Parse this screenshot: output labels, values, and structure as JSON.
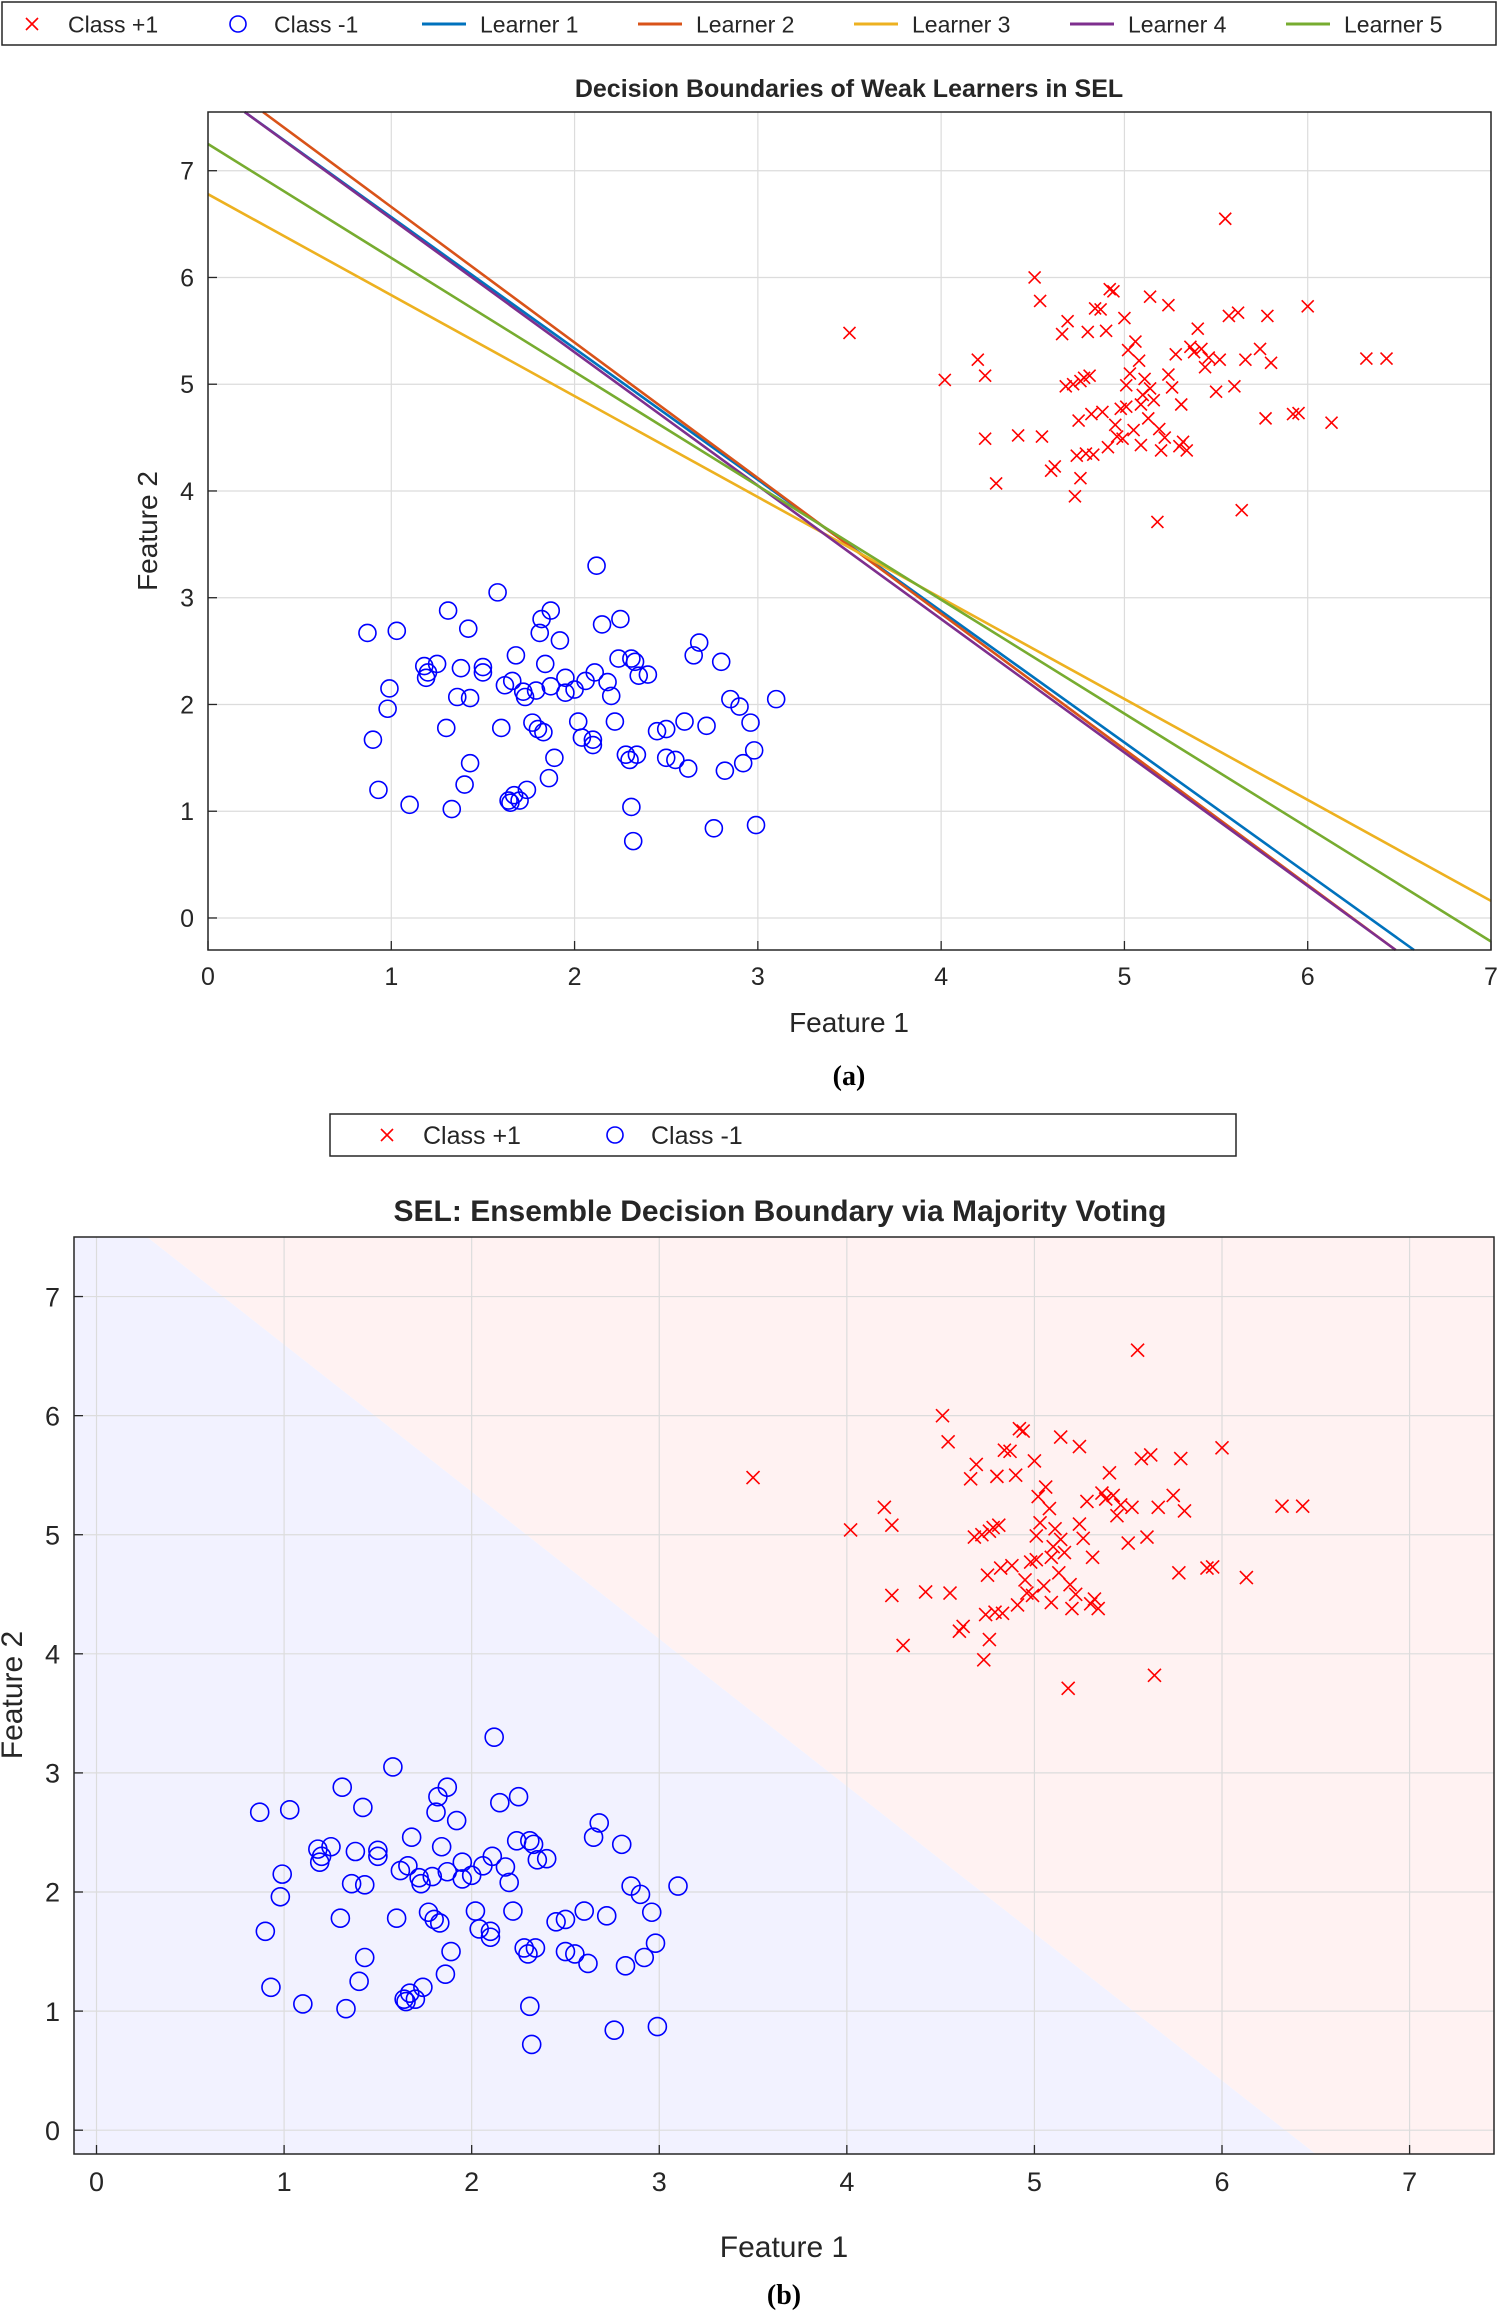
{
  "captions": [
    "(a)",
    "(b)"
  ],
  "chart_data": [
    {
      "type": "line",
      "title": "Decision Boundaries of Weak Learners in SEL",
      "xlabel": "Feature 1",
      "ylabel": "Feature 2",
      "xlim": [
        0,
        7
      ],
      "ylim": [
        -0.3,
        7.55
      ],
      "xticks": [
        0,
        1,
        2,
        3,
        4,
        5,
        6,
        7
      ],
      "yticks": [
        0,
        1,
        2,
        3,
        4,
        5,
        6,
        7
      ],
      "grid": true,
      "legend": {
        "placement": "top",
        "entries": [
          {
            "label": "Class +1",
            "marker": "x",
            "color": "#ff0000"
          },
          {
            "label": "Class -1",
            "marker": "o",
            "color": "#0000ff"
          },
          {
            "label": "Learner 1",
            "marker": "line",
            "color": "#0072bd"
          },
          {
            "label": "Learner 2",
            "marker": "line",
            "color": "#d95319"
          },
          {
            "label": "Learner 3",
            "marker": "line",
            "color": "#edb120"
          },
          {
            "label": "Learner 4",
            "marker": "line",
            "color": "#7e2f8e"
          },
          {
            "label": "Learner 5",
            "marker": "line",
            "color": "#77ac30"
          }
        ]
      },
      "learners": [
        {
          "name": "Learner 1",
          "color": "#0072bd",
          "x": [
            0.2,
            6.58
          ],
          "y": [
            7.55,
            -0.3
          ]
        },
        {
          "name": "Learner 2",
          "color": "#d95319",
          "x": [
            0.3,
            6.48
          ],
          "y": [
            7.55,
            -0.3
          ]
        },
        {
          "name": "Learner 3",
          "color": "#edb120",
          "x": [
            0.0,
            7.0
          ],
          "y": [
            6.78,
            0.16
          ]
        },
        {
          "name": "Learner 4",
          "color": "#7e2f8e",
          "x": [
            0.2,
            6.48
          ],
          "y": [
            7.55,
            -0.3
          ]
        },
        {
          "name": "Learner 5",
          "color": "#77ac30",
          "x": [
            0.0,
            7.0
          ],
          "y": [
            7.25,
            -0.22
          ]
        }
      ]
    },
    {
      "type": "scatter",
      "title": "SEL: Ensemble Decision Boundary via Majority Voting",
      "xlabel": "Feature 1",
      "ylabel": "Feature 2",
      "xlim": [
        -0.12,
        7.45
      ],
      "ylim": [
        -0.2,
        7.5
      ],
      "xticks": [
        0,
        1,
        2,
        3,
        4,
        5,
        6,
        7
      ],
      "yticks": [
        0,
        1,
        2,
        3,
        4,
        5,
        6,
        7
      ],
      "grid": true,
      "legend": {
        "placement": "top",
        "entries": [
          {
            "label": "Class +1",
            "marker": "x",
            "color": "#ff0000"
          },
          {
            "label": "Class -1",
            "marker": "o",
            "color": "#0000ff"
          }
        ]
      },
      "regions": {
        "class_minus1_color": "#f2f2ff",
        "class_plus1_color": "#fff2f2",
        "boundary_x": [
          0.27,
          6.5
        ],
        "boundary_y": [
          7.5,
          -0.2
        ]
      }
    }
  ],
  "points": {
    "class_plus1": [
      [
        3.5,
        5.48
      ],
      [
        4.02,
        5.04
      ],
      [
        4.2,
        5.23
      ],
      [
        4.24,
        5.08
      ],
      [
        4.24,
        4.49
      ],
      [
        4.42,
        4.52
      ],
      [
        4.51,
        6.0
      ],
      [
        4.54,
        5.78
      ],
      [
        4.55,
        4.51
      ],
      [
        4.3,
        4.07
      ],
      [
        4.6,
        4.19
      ],
      [
        4.62,
        4.23
      ],
      [
        4.66,
        5.47
      ],
      [
        4.68,
        4.98
      ],
      [
        4.69,
        5.59
      ],
      [
        4.72,
        5.0
      ],
      [
        4.73,
        3.95
      ],
      [
        4.74,
        4.33
      ],
      [
        4.75,
        4.66
      ],
      [
        4.76,
        5.03
      ],
      [
        4.78,
        5.06
      ],
      [
        4.8,
        5.49
      ],
      [
        4.81,
        5.08
      ],
      [
        4.82,
        4.72
      ],
      [
        4.84,
        5.71
      ],
      [
        4.87,
        5.7
      ],
      [
        4.88,
        4.74
      ],
      [
        4.9,
        5.5
      ],
      [
        4.92,
        5.89
      ],
      [
        4.94,
        5.87
      ],
      [
        4.95,
        4.62
      ],
      [
        4.96,
        4.51
      ],
      [
        4.98,
        4.77
      ],
      [
        4.99,
        4.49
      ],
      [
        5.0,
        5.62
      ],
      [
        5.01,
        4.99
      ],
      [
        5.02,
        5.32
      ],
      [
        5.03,
        5.1
      ],
      [
        5.05,
        4.57
      ],
      [
        5.06,
        5.4
      ],
      [
        5.08,
        5.22
      ],
      [
        5.09,
        4.43
      ],
      [
        5.1,
        4.9
      ],
      [
        5.11,
        5.05
      ],
      [
        5.13,
        4.68
      ],
      [
        5.14,
        5.82
      ],
      [
        5.16,
        4.85
      ],
      [
        5.18,
        3.71
      ],
      [
        5.2,
        4.38
      ],
      [
        5.22,
        4.5
      ],
      [
        5.24,
        5.74
      ],
      [
        5.26,
        4.97
      ],
      [
        5.28,
        5.28
      ],
      [
        5.3,
        4.42
      ],
      [
        5.32,
        4.46
      ],
      [
        5.34,
        4.38
      ],
      [
        5.36,
        5.35
      ],
      [
        5.38,
        5.3
      ],
      [
        5.4,
        5.52
      ],
      [
        5.42,
        5.33
      ],
      [
        5.46,
        5.25
      ],
      [
        5.5,
        4.93
      ],
      [
        5.52,
        5.23
      ],
      [
        5.55,
        6.55
      ],
      [
        5.57,
        5.64
      ],
      [
        5.6,
        4.98
      ],
      [
        5.62,
        5.67
      ],
      [
        5.64,
        3.82
      ],
      [
        5.66,
        5.23
      ],
      [
        5.74,
        5.33
      ],
      [
        5.8,
        5.2
      ],
      [
        5.78,
        5.64
      ],
      [
        5.77,
        4.68
      ],
      [
        5.92,
        4.72
      ],
      [
        5.95,
        4.73
      ],
      [
        6.0,
        5.73
      ],
      [
        6.13,
        4.64
      ],
      [
        6.32,
        5.24
      ],
      [
        6.43,
        5.24
      ],
      [
        4.76,
        4.12
      ],
      [
        4.83,
        4.34
      ],
      [
        4.91,
        4.41
      ],
      [
        5.01,
        4.79
      ],
      [
        5.09,
        4.81
      ],
      [
        5.19,
        4.58
      ],
      [
        5.24,
        5.09
      ],
      [
        5.31,
        4.81
      ],
      [
        5.44,
        5.16
      ],
      [
        4.79,
        4.35
      ],
      [
        5.14,
        4.96
      ]
    ],
    "class_minus1": [
      [
        0.87,
        2.67
      ],
      [
        0.9,
        1.67
      ],
      [
        0.93,
        1.2
      ],
      [
        0.98,
        1.96
      ],
      [
        0.99,
        2.15
      ],
      [
        1.03,
        2.69
      ],
      [
        1.1,
        1.06
      ],
      [
        1.18,
        2.36
      ],
      [
        1.19,
        2.25
      ],
      [
        1.2,
        2.3
      ],
      [
        1.25,
        2.38
      ],
      [
        1.3,
        1.78
      ],
      [
        1.31,
        2.88
      ],
      [
        1.33,
        1.02
      ],
      [
        1.36,
        2.07
      ],
      [
        1.38,
        2.34
      ],
      [
        1.4,
        1.25
      ],
      [
        1.42,
        2.71
      ],
      [
        1.43,
        1.45
      ],
      [
        1.43,
        2.06
      ],
      [
        1.5,
        2.3
      ],
      [
        1.5,
        2.35
      ],
      [
        1.58,
        3.05
      ],
      [
        1.6,
        1.78
      ],
      [
        1.62,
        2.18
      ],
      [
        1.64,
        1.1
      ],
      [
        1.65,
        1.08
      ],
      [
        1.66,
        2.22
      ],
      [
        1.67,
        1.15
      ],
      [
        1.68,
        2.46
      ],
      [
        1.7,
        1.1
      ],
      [
        1.72,
        2.12
      ],
      [
        1.73,
        2.07
      ],
      [
        1.74,
        1.2
      ],
      [
        1.77,
        1.83
      ],
      [
        1.79,
        2.13
      ],
      [
        1.8,
        1.77
      ],
      [
        1.81,
        2.67
      ],
      [
        1.82,
        2.8
      ],
      [
        1.83,
        1.74
      ],
      [
        1.84,
        2.38
      ],
      [
        1.86,
        1.31
      ],
      [
        1.87,
        2.88
      ],
      [
        1.87,
        2.17
      ],
      [
        1.89,
        1.5
      ],
      [
        1.92,
        2.6
      ],
      [
        1.95,
        2.11
      ],
      [
        2.0,
        2.14
      ],
      [
        2.02,
        1.84
      ],
      [
        2.04,
        1.69
      ],
      [
        2.06,
        2.22
      ],
      [
        2.1,
        1.62
      ],
      [
        2.1,
        1.67
      ],
      [
        2.11,
        2.3
      ],
      [
        2.12,
        3.3
      ],
      [
        2.15,
        2.75
      ],
      [
        2.18,
        2.21
      ],
      [
        2.2,
        2.08
      ],
      [
        2.22,
        1.84
      ],
      [
        2.24,
        2.43
      ],
      [
        2.25,
        2.8
      ],
      [
        2.28,
        1.53
      ],
      [
        2.3,
        1.48
      ],
      [
        2.31,
        2.43
      ],
      [
        2.31,
        1.04
      ],
      [
        2.32,
        0.72
      ],
      [
        2.33,
        2.4
      ],
      [
        2.35,
        2.27
      ],
      [
        2.4,
        2.28
      ],
      [
        2.45,
        1.75
      ],
      [
        2.5,
        1.5
      ],
      [
        2.5,
        1.77
      ],
      [
        2.55,
        1.48
      ],
      [
        2.6,
        1.84
      ],
      [
        2.65,
        2.46
      ],
      [
        2.68,
        2.58
      ],
      [
        2.72,
        1.8
      ],
      [
        2.76,
        0.84
      ],
      [
        2.8,
        2.4
      ],
      [
        2.82,
        1.38
      ],
      [
        2.85,
        2.05
      ],
      [
        2.9,
        1.98
      ],
      [
        2.92,
        1.45
      ],
      [
        2.96,
        1.83
      ],
      [
        2.98,
        1.57
      ],
      [
        2.99,
        0.87
      ],
      [
        3.1,
        2.05
      ],
      [
        2.62,
        1.4
      ],
      [
        2.34,
        1.53
      ],
      [
        1.95,
        2.25
      ]
    ]
  }
}
